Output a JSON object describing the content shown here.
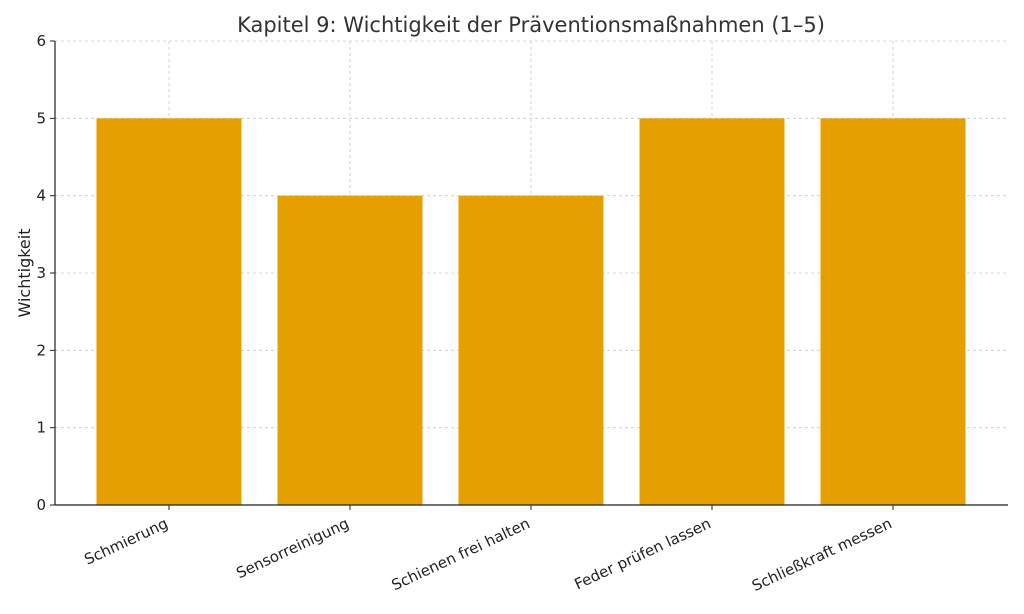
{
  "chart_data": {
    "type": "bar",
    "title": "Kapitel 9: Wichtigkeit der Präventionsmaßnahmen (1–5)",
    "xlabel": "",
    "ylabel": "Wichtigkeit",
    "categories": [
      "Schmierung",
      "Sensorreinigung",
      "Schienen frei halten",
      "Feder prüfen lassen",
      "Schließkraft messen"
    ],
    "values": [
      5,
      4,
      4,
      5,
      5
    ],
    "ylim": [
      0,
      6
    ],
    "yticks": [
      "0",
      "1",
      "2",
      "3",
      "4",
      "5",
      "6"
    ],
    "grid": true,
    "bar_color": "#E5A000",
    "grid_color": "#cccccc"
  }
}
